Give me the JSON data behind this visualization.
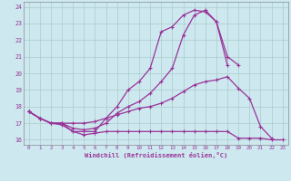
{
  "xlabel": "Windchill (Refroidissement éolien,°C)",
  "x_values": [
    0,
    1,
    2,
    3,
    4,
    5,
    6,
    7,
    8,
    9,
    10,
    11,
    12,
    13,
    14,
    15,
    16,
    17,
    18,
    19,
    20,
    21,
    22,
    23
  ],
  "line1": [
    17.7,
    17.3,
    17.0,
    17.0,
    16.5,
    16.5,
    16.5,
    17.3,
    18.0,
    19.0,
    19.5,
    20.3,
    22.5,
    22.8,
    23.5,
    23.8,
    23.7,
    23.1,
    21.0,
    20.5,
    null,
    null,
    null,
    null
  ],
  "line2": [
    17.7,
    17.3,
    17.0,
    17.0,
    16.7,
    16.6,
    16.7,
    17.0,
    17.6,
    18.0,
    18.3,
    18.8,
    19.5,
    20.3,
    22.3,
    23.5,
    23.8,
    23.1,
    20.5,
    null,
    null,
    null,
    null,
    null
  ],
  "line3": [
    17.7,
    17.3,
    17.0,
    17.0,
    17.0,
    17.0,
    17.1,
    17.3,
    17.5,
    17.7,
    17.9,
    18.0,
    18.2,
    18.5,
    18.9,
    19.3,
    19.5,
    19.6,
    19.8,
    19.1,
    18.5,
    16.8,
    16.1,
    null
  ],
  "line4": [
    17.7,
    17.3,
    17.0,
    16.9,
    16.5,
    16.3,
    16.4,
    16.5,
    16.5,
    16.5,
    16.5,
    16.5,
    16.5,
    16.5,
    16.5,
    16.5,
    16.5,
    16.5,
    16.5,
    16.1,
    16.1,
    16.1,
    16.0,
    16.0
  ],
  "line_color": "#993399",
  "bg_color": "#cde8ee",
  "grid_color": "#aacccc",
  "ylim": [
    15.7,
    24.3
  ],
  "yticks": [
    16,
    17,
    18,
    19,
    20,
    21,
    22,
    23,
    24
  ],
  "marker": "+"
}
